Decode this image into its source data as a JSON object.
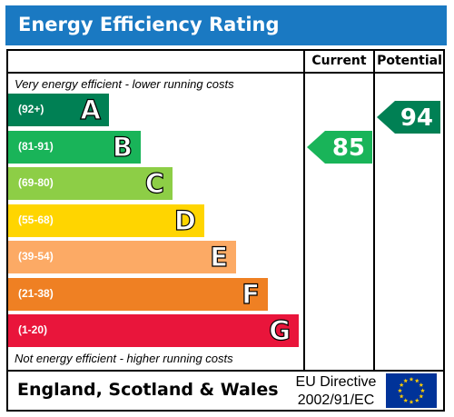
{
  "title": "Energy Efficiency Rating",
  "columns": {
    "current": "Current",
    "potential": "Potential"
  },
  "notes": {
    "top": "Very energy efficient - lower running costs",
    "bottom": "Not energy efficient - higher running costs"
  },
  "bands": [
    {
      "range": "(92+)",
      "letter": "A",
      "color": "#008054"
    },
    {
      "range": "(81-91)",
      "letter": "B",
      "color": "#19b459"
    },
    {
      "range": "(69-80)",
      "letter": "C",
      "color": "#8dce46"
    },
    {
      "range": "(55-68)",
      "letter": "D",
      "color": "#ffd500"
    },
    {
      "range": "(39-54)",
      "letter": "E",
      "color": "#fcaa65"
    },
    {
      "range": "(21-38)",
      "letter": "F",
      "color": "#ef8023"
    },
    {
      "range": "(1-20)",
      "letter": "G",
      "color": "#e9153b"
    }
  ],
  "ratings": {
    "current": "85",
    "potential": "94",
    "current_color": "#19b459",
    "potential_color": "#008054"
  },
  "footer": {
    "country": "England, Scotland & Wales",
    "directive_line1": "EU Directive",
    "directive_line2": "2002/91/EC",
    "flag_icon": "eu-flag-icon"
  },
  "colors": {
    "title_bar": "#1a79c2",
    "flag_blue": "#003399",
    "flag_star": "#ffcc00"
  }
}
